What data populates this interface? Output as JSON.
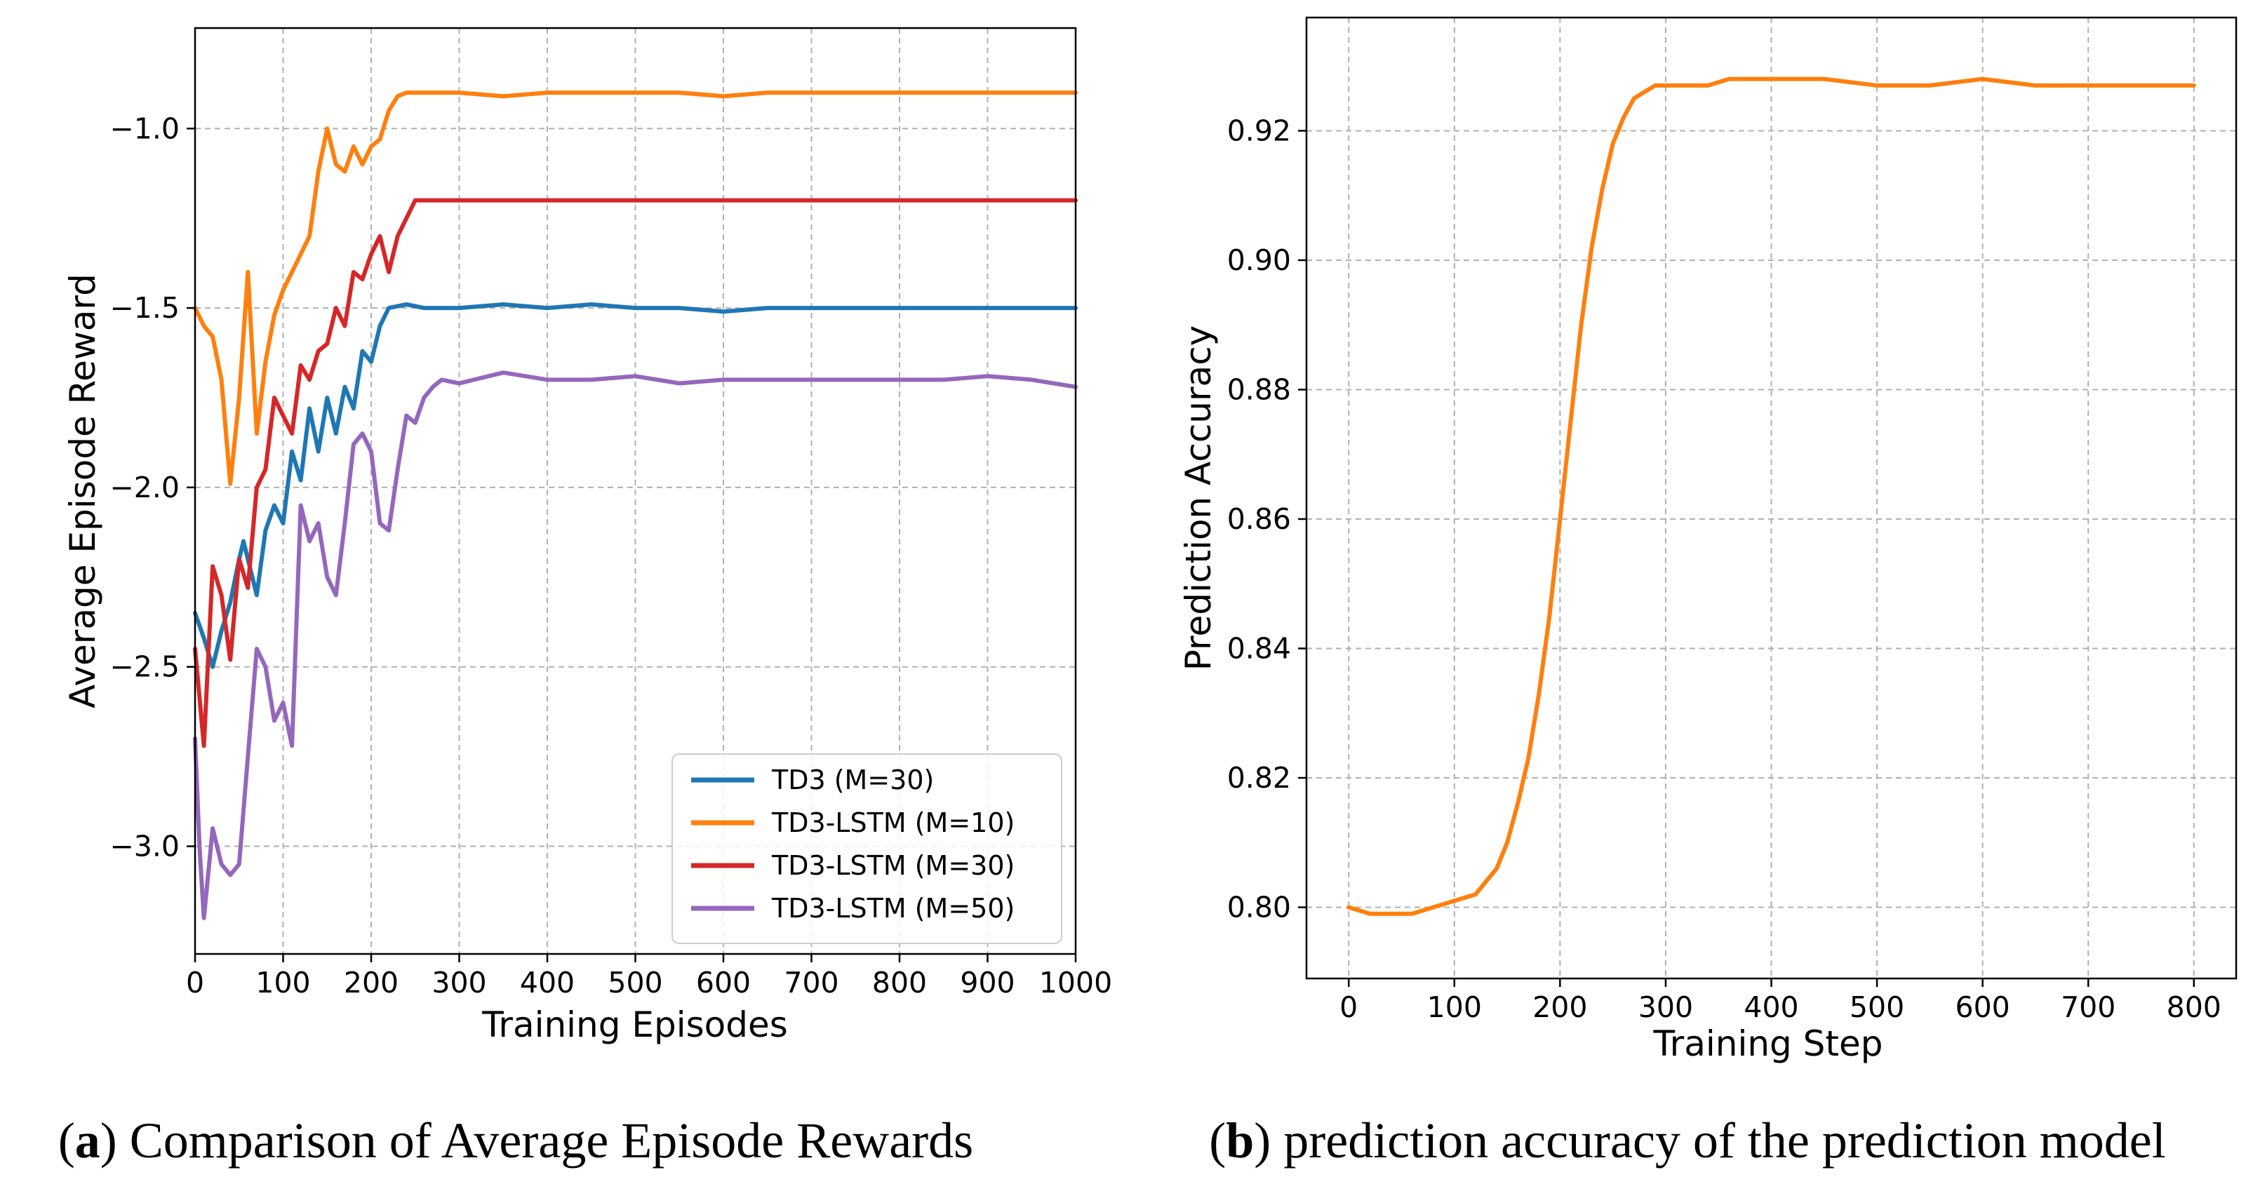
{
  "chart_data": [
    {
      "type": "line",
      "xlabel": "Training Episodes",
      "ylabel": "Average Episode Reward",
      "xlim": [
        0,
        1000
      ],
      "ylim": [
        -3.3,
        -0.72
      ],
      "xticks": [
        0,
        100,
        200,
        300,
        400,
        500,
        600,
        700,
        800,
        900,
        1000
      ],
      "yticks": [
        -3.0,
        -2.5,
        -2.0,
        -1.5,
        -1.0
      ],
      "ytick_labels": [
        "−3.0",
        "−2.5",
        "−2.0",
        "−1.5",
        "−1.0"
      ],
      "grid": true,
      "legend_position": "lower-right",
      "series": [
        {
          "name": "TD3 (M=30)",
          "color": "#1f77b4",
          "x": [
            0,
            10,
            20,
            30,
            40,
            50,
            55,
            60,
            70,
            80,
            90,
            100,
            110,
            120,
            130,
            140,
            150,
            160,
            170,
            180,
            190,
            200,
            210,
            220,
            240,
            260,
            280,
            300,
            350,
            400,
            450,
            500,
            550,
            600,
            650,
            700,
            750,
            800,
            850,
            900,
            950,
            1000
          ],
          "y": [
            -2.35,
            -2.42,
            -2.5,
            -2.4,
            -2.32,
            -2.2,
            -2.15,
            -2.2,
            -2.3,
            -2.12,
            -2.05,
            -2.1,
            -1.9,
            -1.98,
            -1.78,
            -1.9,
            -1.75,
            -1.85,
            -1.72,
            -1.78,
            -1.62,
            -1.65,
            -1.55,
            -1.5,
            -1.49,
            -1.5,
            -1.5,
            -1.5,
            -1.49,
            -1.5,
            -1.49,
            -1.5,
            -1.5,
            -1.51,
            -1.5,
            -1.5,
            -1.5,
            -1.5,
            -1.5,
            -1.5,
            -1.5,
            -1.5
          ]
        },
        {
          "name": "TD3-LSTM (M=10)",
          "color": "#ff7f0e",
          "x": [
            0,
            10,
            20,
            30,
            40,
            50,
            60,
            70,
            80,
            90,
            100,
            110,
            120,
            130,
            140,
            150,
            160,
            170,
            180,
            190,
            200,
            210,
            220,
            230,
            240,
            260,
            280,
            300,
            350,
            400,
            450,
            500,
            550,
            600,
            650,
            700,
            750,
            800,
            850,
            900,
            950,
            1000
          ],
          "y": [
            -1.5,
            -1.55,
            -1.58,
            -1.7,
            -1.99,
            -1.75,
            -1.4,
            -1.85,
            -1.65,
            -1.52,
            -1.45,
            -1.4,
            -1.35,
            -1.3,
            -1.12,
            -1.0,
            -1.1,
            -1.12,
            -1.05,
            -1.1,
            -1.05,
            -1.03,
            -0.95,
            -0.91,
            -0.9,
            -0.9,
            -0.9,
            -0.9,
            -0.91,
            -0.9,
            -0.9,
            -0.9,
            -0.9,
            -0.91,
            -0.9,
            -0.9,
            -0.9,
            -0.9,
            -0.9,
            -0.9,
            -0.9,
            -0.9
          ]
        },
        {
          "name": "TD3-LSTM (M=30)",
          "color": "#d62728",
          "x": [
            0,
            10,
            20,
            30,
            40,
            50,
            60,
            70,
            80,
            90,
            100,
            110,
            120,
            130,
            140,
            150,
            160,
            170,
            180,
            190,
            200,
            210,
            220,
            230,
            240,
            250,
            260,
            280,
            300,
            350,
            400,
            450,
            500,
            550,
            600,
            650,
            700,
            750,
            800,
            850,
            900,
            950,
            1000
          ],
          "y": [
            -2.45,
            -2.72,
            -2.22,
            -2.3,
            -2.48,
            -2.2,
            -2.28,
            -2.0,
            -1.95,
            -1.75,
            -1.8,
            -1.85,
            -1.66,
            -1.7,
            -1.62,
            -1.6,
            -1.5,
            -1.55,
            -1.4,
            -1.42,
            -1.35,
            -1.3,
            -1.4,
            -1.3,
            -1.25,
            -1.2,
            -1.2,
            -1.2,
            -1.2,
            -1.2,
            -1.2,
            -1.2,
            -1.2,
            -1.2,
            -1.2,
            -1.2,
            -1.2,
            -1.2,
            -1.2,
            -1.2,
            -1.2,
            -1.2,
            -1.2
          ]
        },
        {
          "name": "TD3-LSTM (M=50)",
          "color": "#9467bd",
          "x": [
            0,
            5,
            10,
            20,
            30,
            40,
            50,
            60,
            70,
            80,
            90,
            100,
            110,
            120,
            130,
            140,
            150,
            160,
            170,
            180,
            190,
            200,
            210,
            220,
            230,
            240,
            250,
            260,
            270,
            280,
            300,
            350,
            400,
            450,
            500,
            550,
            600,
            650,
            700,
            750,
            800,
            850,
            900,
            950,
            1000
          ],
          "y": [
            -2.7,
            -3.0,
            -3.2,
            -2.95,
            -3.05,
            -3.08,
            -3.05,
            -2.75,
            -2.45,
            -2.5,
            -2.65,
            -2.6,
            -2.72,
            -2.05,
            -2.15,
            -2.1,
            -2.25,
            -2.3,
            -2.1,
            -1.88,
            -1.85,
            -1.9,
            -2.1,
            -2.12,
            -1.95,
            -1.8,
            -1.82,
            -1.75,
            -1.72,
            -1.7,
            -1.71,
            -1.68,
            -1.7,
            -1.7,
            -1.69,
            -1.71,
            -1.7,
            -1.7,
            -1.7,
            -1.7,
            -1.7,
            -1.7,
            -1.69,
            -1.7,
            -1.72
          ]
        }
      ]
    },
    {
      "type": "line",
      "xlabel": "Training Step",
      "ylabel": "Prediction Accuracy",
      "xlim": [
        -40,
        840
      ],
      "ylim": [
        0.789,
        0.9375
      ],
      "xticks": [
        0,
        100,
        200,
        300,
        400,
        500,
        600,
        700,
        800
      ],
      "yticks": [
        0.8,
        0.82,
        0.84,
        0.86,
        0.88,
        0.9,
        0.92
      ],
      "ytick_labels": [
        "0.80",
        "0.82",
        "0.84",
        "0.86",
        "0.88",
        "0.90",
        "0.92"
      ],
      "grid": true,
      "series": [
        {
          "color": "#ff7f0e",
          "x": [
            0,
            20,
            40,
            60,
            80,
            100,
            120,
            140,
            150,
            160,
            170,
            180,
            190,
            200,
            210,
            220,
            230,
            240,
            250,
            260,
            270,
            280,
            290,
            300,
            320,
            340,
            360,
            380,
            400,
            450,
            500,
            550,
            600,
            650,
            700,
            750,
            800
          ],
          "y": [
            0.8,
            0.799,
            0.799,
            0.799,
            0.8,
            0.801,
            0.802,
            0.806,
            0.81,
            0.816,
            0.823,
            0.833,
            0.845,
            0.86,
            0.875,
            0.89,
            0.902,
            0.911,
            0.918,
            0.922,
            0.925,
            0.926,
            0.927,
            0.927,
            0.927,
            0.927,
            0.928,
            0.928,
            0.928,
            0.928,
            0.927,
            0.927,
            0.928,
            0.927,
            0.927,
            0.927,
            0.927
          ]
        }
      ]
    }
  ],
  "captions": [
    {
      "label": "a",
      "text": "Comparison of Average Episode Rewards"
    },
    {
      "label": "b",
      "text": "prediction accuracy of the prediction model"
    }
  ]
}
